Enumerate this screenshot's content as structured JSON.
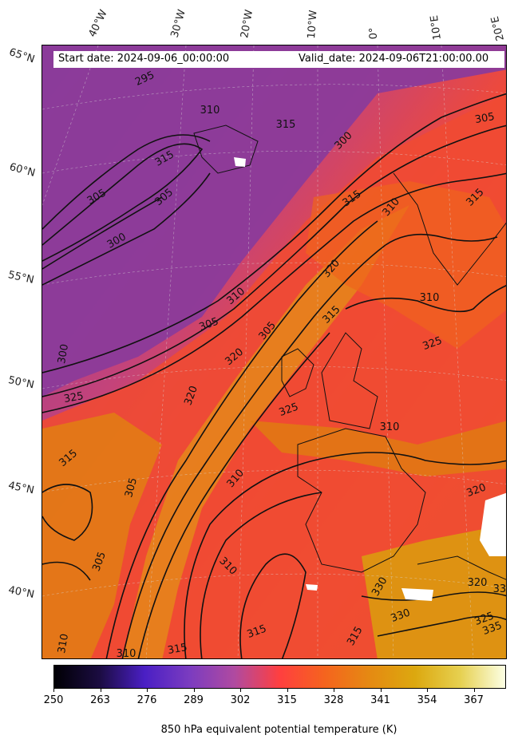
{
  "header": {
    "start_date": "Start date: 2024-09-06_00:00:00",
    "valid_date": "Valid_date: 2024-09-06T21:00:00.00"
  },
  "lat_labels": [
    "65°N",
    "60°N",
    "55°N",
    "50°N",
    "45°N",
    "40°N"
  ],
  "lon_labels": [
    "40°W",
    "30°W",
    "20°W",
    "10°W",
    "0°",
    "10°E",
    "20°E"
  ],
  "colorbar": {
    "label": "850 hPa equivalent potential temperature (K)",
    "min": 250,
    "max": 376,
    "ticks": [
      "250",
      "263",
      "276",
      "289",
      "302",
      "315",
      "328",
      "341",
      "354",
      "367"
    ],
    "colormap": [
      "#000004",
      "#1b0c41",
      "#4a1fc4",
      "#7b3cc0",
      "#b04aa0",
      "#ff3f3f",
      "#f5641e",
      "#e58a12",
      "#dca80f",
      "#e6d050",
      "#fcffe4"
    ]
  },
  "contour_labels": [
    "295",
    "310",
    "315",
    "305",
    "305",
    "300",
    "300",
    "310",
    "305",
    "315",
    "315",
    "320",
    "310",
    "305",
    "300",
    "320",
    "315",
    "305",
    "325",
    "320",
    "315",
    "325",
    "310",
    "310",
    "305",
    "310",
    "325",
    "320",
    "315",
    "330",
    "330",
    "325",
    "335",
    "320",
    "330",
    "305",
    "315",
    "310",
    "315",
    "310",
    "315",
    "310"
  ]
}
